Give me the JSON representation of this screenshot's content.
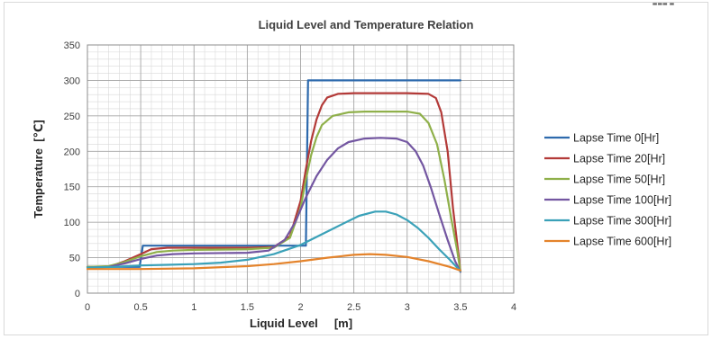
{
  "corner_mark": "▬▬▬ ▬",
  "chart_data": {
    "type": "line",
    "title": "Liquid Level and Temperature Relation",
    "xlabel": "Liquid Level     [m]",
    "ylabel": "Temperature  [℃]",
    "xlim": [
      0,
      4
    ],
    "ylim": [
      0,
      350
    ],
    "x_ticks": [
      0,
      0.5,
      1,
      1.5,
      2,
      2.5,
      3,
      3.5,
      4
    ],
    "y_ticks": [
      0,
      50,
      100,
      150,
      200,
      250,
      300,
      350
    ],
    "x_tick_labels": [
      "0",
      "0.5",
      "1",
      "1.5",
      "2",
      "2.5",
      "3",
      "3.5",
      "4"
    ],
    "y_tick_labels": [
      "0",
      "50",
      "100",
      "150",
      "200",
      "250",
      "300",
      "350"
    ],
    "grid": true,
    "legend_position": "right",
    "series": [
      {
        "name": "Lapse Time 0[Hr]",
        "color": "#2e6aad",
        "points": [
          [
            0,
            37
          ],
          [
            0.49,
            37
          ],
          [
            0.52,
            67
          ],
          [
            2.05,
            67
          ],
          [
            2.07,
            300
          ],
          [
            3.5,
            300
          ]
        ]
      },
      {
        "name": "Lapse Time 20[Hr]",
        "color": "#b33a38",
        "points": [
          [
            0,
            37
          ],
          [
            0.2,
            37
          ],
          [
            0.35,
            45
          ],
          [
            0.5,
            55
          ],
          [
            0.6,
            62
          ],
          [
            0.75,
            64
          ],
          [
            1.0,
            64
          ],
          [
            1.5,
            64
          ],
          [
            1.75,
            65
          ],
          [
            1.9,
            80
          ],
          [
            2.0,
            130
          ],
          [
            2.05,
            175
          ],
          [
            2.1,
            215
          ],
          [
            2.15,
            245
          ],
          [
            2.2,
            265
          ],
          [
            2.25,
            276
          ],
          [
            2.35,
            281
          ],
          [
            2.5,
            282
          ],
          [
            3.0,
            282
          ],
          [
            3.2,
            281
          ],
          [
            3.27,
            275
          ],
          [
            3.32,
            255
          ],
          [
            3.38,
            200
          ],
          [
            3.43,
            120
          ],
          [
            3.47,
            70
          ],
          [
            3.5,
            30
          ]
        ]
      },
      {
        "name": "Lapse Time 50[Hr]",
        "color": "#8fb04a",
        "points": [
          [
            0,
            37
          ],
          [
            0.2,
            38
          ],
          [
            0.35,
            44
          ],
          [
            0.5,
            52
          ],
          [
            0.65,
            58
          ],
          [
            0.8,
            60
          ],
          [
            1.0,
            61
          ],
          [
            1.5,
            62
          ],
          [
            1.75,
            64
          ],
          [
            1.9,
            78
          ],
          [
            2.0,
            120
          ],
          [
            2.05,
            160
          ],
          [
            2.1,
            195
          ],
          [
            2.15,
            220
          ],
          [
            2.2,
            237
          ],
          [
            2.3,
            250
          ],
          [
            2.45,
            255
          ],
          [
            2.6,
            256
          ],
          [
            3.0,
            256
          ],
          [
            3.12,
            253
          ],
          [
            3.2,
            240
          ],
          [
            3.28,
            210
          ],
          [
            3.35,
            160
          ],
          [
            3.42,
            100
          ],
          [
            3.47,
            60
          ],
          [
            3.5,
            30
          ]
        ]
      },
      {
        "name": "Lapse Time 100[Hr]",
        "color": "#7356a1",
        "points": [
          [
            0,
            36
          ],
          [
            0.2,
            37
          ],
          [
            0.35,
            42
          ],
          [
            0.5,
            48
          ],
          [
            0.65,
            53
          ],
          [
            0.8,
            55
          ],
          [
            1.0,
            56
          ],
          [
            1.5,
            57
          ],
          [
            1.7,
            60
          ],
          [
            1.85,
            75
          ],
          [
            1.95,
            100
          ],
          [
            2.05,
            135
          ],
          [
            2.15,
            165
          ],
          [
            2.25,
            188
          ],
          [
            2.35,
            204
          ],
          [
            2.45,
            213
          ],
          [
            2.6,
            218
          ],
          [
            2.75,
            219
          ],
          [
            2.9,
            218
          ],
          [
            3.0,
            213
          ],
          [
            3.08,
            200
          ],
          [
            3.15,
            180
          ],
          [
            3.22,
            150
          ],
          [
            3.3,
            112
          ],
          [
            3.38,
            75
          ],
          [
            3.45,
            45
          ],
          [
            3.5,
            30
          ]
        ]
      },
      {
        "name": "Lapse Time 300[Hr]",
        "color": "#3aa1b8",
        "points": [
          [
            0,
            36
          ],
          [
            0.25,
            37
          ],
          [
            0.5,
            39
          ],
          [
            0.75,
            40
          ],
          [
            1.0,
            41
          ],
          [
            1.25,
            43
          ],
          [
            1.5,
            47
          ],
          [
            1.75,
            55
          ],
          [
            2.0,
            68
          ],
          [
            2.2,
            83
          ],
          [
            2.4,
            98
          ],
          [
            2.55,
            109
          ],
          [
            2.7,
            115
          ],
          [
            2.8,
            115
          ],
          [
            2.9,
            111
          ],
          [
            3.0,
            103
          ],
          [
            3.1,
            92
          ],
          [
            3.2,
            78
          ],
          [
            3.3,
            62
          ],
          [
            3.4,
            47
          ],
          [
            3.5,
            31
          ]
        ]
      },
      {
        "name": "Lapse Time 600[Hr]",
        "color": "#e4832b",
        "points": [
          [
            0,
            34
          ],
          [
            0.5,
            34
          ],
          [
            1.0,
            35
          ],
          [
            1.5,
            38
          ],
          [
            1.75,
            41
          ],
          [
            2.0,
            45
          ],
          [
            2.25,
            50
          ],
          [
            2.5,
            54
          ],
          [
            2.65,
            55
          ],
          [
            2.8,
            54
          ],
          [
            3.0,
            51
          ],
          [
            3.2,
            45
          ],
          [
            3.4,
            37
          ],
          [
            3.5,
            32
          ]
        ]
      }
    ]
  }
}
